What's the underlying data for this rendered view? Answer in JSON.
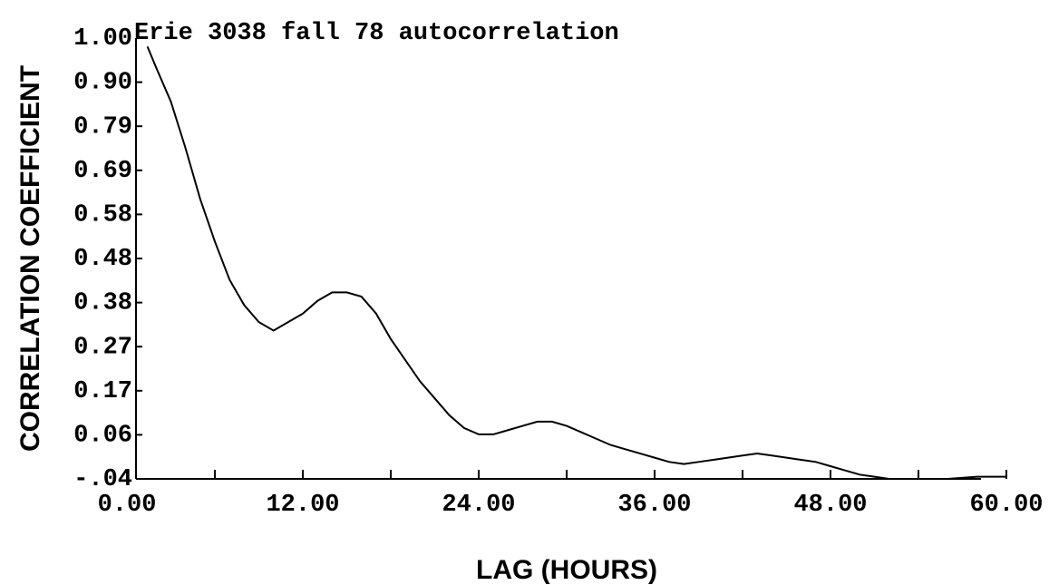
{
  "chart_data": {
    "type": "line",
    "title": "Erie 3038 fall 78 autocorrelation",
    "x_label": "LAG (HOURS)",
    "y_label": "CORRELATION COEFFICIENT",
    "x": [
      1.4,
      2,
      3,
      4,
      5,
      6,
      7,
      8,
      9,
      10,
      11,
      12,
      13,
      14,
      15,
      16,
      17,
      18,
      19,
      20,
      21,
      22,
      23,
      24,
      25,
      26,
      27,
      28,
      29,
      30,
      31,
      32,
      33,
      34,
      35,
      36,
      37,
      38,
      39,
      40,
      41,
      42,
      43,
      44,
      45,
      46,
      47,
      48,
      49,
      50,
      51,
      52,
      54,
      56,
      58,
      60
    ],
    "series": [
      {
        "color": "#000000",
        "values": [
          0.98,
          0.93,
          0.85,
          0.74,
          0.62,
          0.52,
          0.43,
          0.37,
          0.33,
          0.31,
          0.33,
          0.35,
          0.38,
          0.4,
          0.4,
          0.39,
          0.35,
          0.29,
          0.24,
          0.19,
          0.15,
          0.11,
          0.08,
          0.065,
          0.065,
          0.075,
          0.085,
          0.095,
          0.095,
          0.085,
          0.07,
          0.055,
          0.04,
          0.03,
          0.02,
          0.01,
          0.0,
          -0.005,
          0.0,
          0.005,
          0.01,
          0.015,
          0.02,
          0.015,
          0.01,
          0.005,
          0.0,
          -0.01,
          -0.02,
          -0.03,
          -0.035,
          -0.04,
          -0.04,
          -0.04,
          -0.035,
          -0.035
        ]
      }
    ],
    "xlim": [
      0,
      60
    ],
    "xticks": [
      {
        "value": 0,
        "label": "0.00"
      },
      {
        "value": 12,
        "label": "12.00"
      },
      {
        "value": 24,
        "label": "24.00"
      },
      {
        "value": 36,
        "label": "36.00"
      },
      {
        "value": 48,
        "label": "48.00"
      },
      {
        "value": 60,
        "label": "60.00"
      }
    ],
    "ylim": [
      -0.04,
      1.0
    ],
    "yticks": [
      {
        "value": -0.04,
        "label": "-.04"
      },
      {
        "value": 0.064,
        "label": "0.06"
      },
      {
        "value": 0.168,
        "label": "0.17"
      },
      {
        "value": 0.272,
        "label": "0.27"
      },
      {
        "value": 0.376,
        "label": "0.38"
      },
      {
        "value": 0.48,
        "label": "0.48"
      },
      {
        "value": 0.584,
        "label": "0.58"
      },
      {
        "value": 0.688,
        "label": "0.69"
      },
      {
        "value": 0.792,
        "label": "0.79"
      },
      {
        "value": 0.896,
        "label": "0.90"
      },
      {
        "value": 1.0,
        "label": "1.00"
      }
    ],
    "grid": false
  }
}
